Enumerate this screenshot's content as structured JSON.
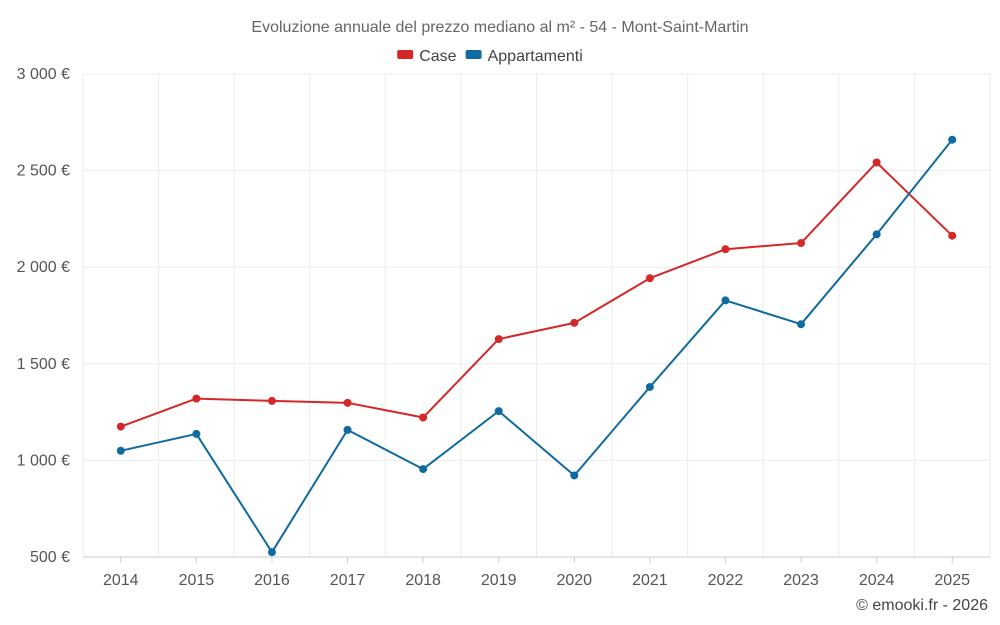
{
  "chart_data": {
    "type": "line",
    "title": "Evoluzione annuale del prezzo mediano al m² - 54 - Mont-Saint-Martin",
    "xlabel": "",
    "ylabel": "",
    "categories": [
      "2014",
      "2015",
      "2016",
      "2017",
      "2018",
      "2019",
      "2020",
      "2021",
      "2022",
      "2023",
      "2024",
      "2025"
    ],
    "ylim": [
      500,
      3000
    ],
    "yticks": [
      500,
      1000,
      1500,
      2000,
      2500,
      3000
    ],
    "ytick_labels": [
      "500 €",
      "1 000 €",
      "1 500 €",
      "2 000 €",
      "2 500 €",
      "3 000 €"
    ],
    "grid": true,
    "legend_position": "top-center",
    "series": [
      {
        "name": "Case",
        "color": "#d62728",
        "values": [
          1175,
          1320,
          1308,
          1298,
          1222,
          1628,
          1712,
          1943,
          2093,
          2125,
          2542,
          2163
        ]
      },
      {
        "name": "Appartamenti",
        "color": "#0f6aa0",
        "values": [
          1050,
          1137,
          525,
          1158,
          955,
          1255,
          922,
          1380,
          1828,
          1705,
          2170,
          2660
        ]
      }
    ]
  },
  "credit": "© emooki.fr - 2026"
}
